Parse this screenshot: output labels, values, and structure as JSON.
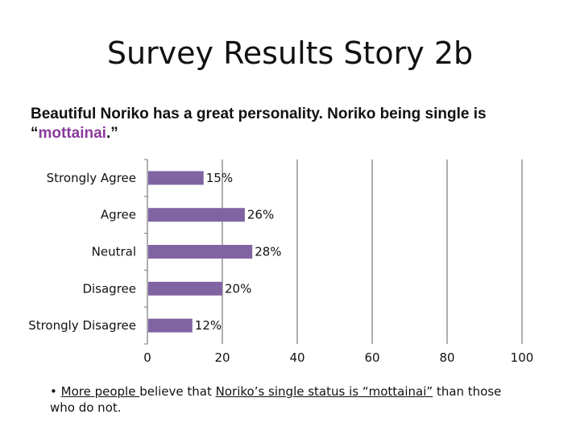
{
  "title": "Survey Results Story 2b",
  "subtitle": {
    "before": "Beautiful Noriko has a great personality. Noriko being single is “",
    "highlight": "mottainai",
    "after": ".”"
  },
  "chart_data": {
    "type": "bar",
    "orientation": "horizontal",
    "categories": [
      "Strongly Agree",
      "Agree",
      "Neutral",
      "Disagree",
      "Strongly Disagree"
    ],
    "values": [
      15,
      26,
      28,
      20,
      12
    ],
    "data_labels": [
      "15%",
      "26%",
      "28%",
      "20%",
      "12%"
    ],
    "xlim": [
      0,
      100
    ],
    "xticks": [
      0,
      20,
      40,
      60,
      80,
      100
    ],
    "grid": true,
    "bar_color": "#8064a2"
  },
  "note": {
    "bullet": "•",
    "part1": "More people ",
    "part2": "believe that ",
    "part3": "Noriko’s single status is “mottainai”",
    "part4": " than those who do not."
  }
}
